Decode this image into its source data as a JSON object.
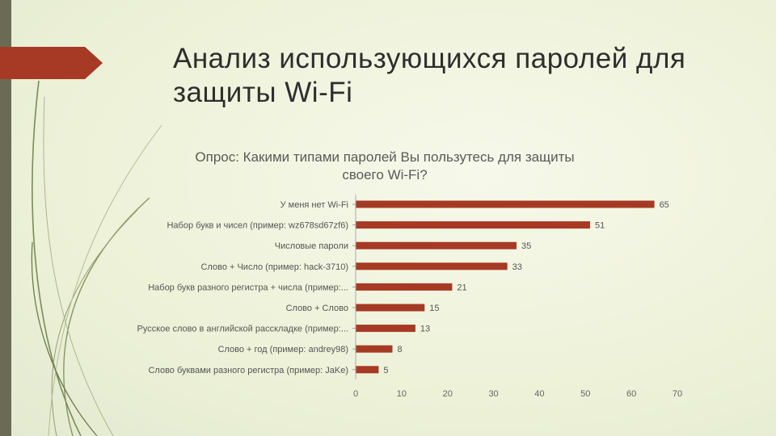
{
  "slide": {
    "title_line1": "Анализ использующихся паролей для",
    "title_line2": "защиты Wi-Fi",
    "accent_color": "#a63a24",
    "sidebar_color": "#6b6b55"
  },
  "chart_data": {
    "type": "bar",
    "orientation": "horizontal",
    "title_line1": "Опрос: Какими типами паролей Вы пользутесь для защиты",
    "title_line2": "своего Wi-Fi?",
    "categories": [
      "У меня нет Wi-Fi",
      "Набор букв и чисел (пример: wz678sd67zf6)",
      "Числовые пароли",
      "Слово + Число (пример: hack-3710)",
      "Набор букв разного регистра + числа (пример:...",
      "Слово + Слово",
      "Русское слово в английской расскладке (пример:...",
      "Слово + год (пример: andrey98)",
      "Слово буквами разного регистра (пример: JaKe)"
    ],
    "values": [
      65,
      51,
      35,
      33,
      21,
      15,
      13,
      8,
      5
    ],
    "xlim": [
      0,
      70
    ],
    "xticks": [
      0,
      10,
      20,
      30,
      40,
      50,
      60,
      70
    ],
    "bar_color": "#a63a24",
    "grid": false,
    "legend": "none"
  }
}
